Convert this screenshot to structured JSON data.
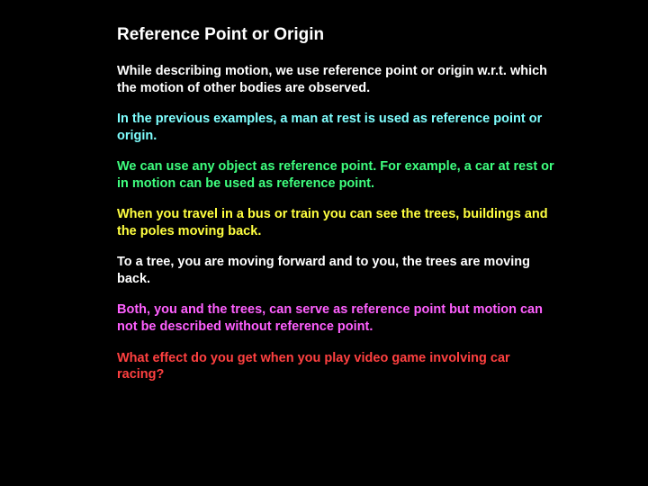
{
  "title": "Reference Point or Origin",
  "paragraphs": [
    {
      "text": "While describing motion, we use reference point or origin w.r.t. which the motion of other bodies are observed.",
      "colorClass": "white"
    },
    {
      "text": "In the previous examples, a man at rest is used as reference point or origin.",
      "colorClass": "cyan"
    },
    {
      "text": "We can use any object as reference point.  For example, a car at rest or in motion can be used as reference point.",
      "colorClass": "green"
    },
    {
      "text": "When you travel in a bus or train you can see the trees, buildings and the poles moving back.",
      "colorClass": "yellow"
    },
    {
      "text": "To a tree, you are moving forward and to you, the trees are moving back.",
      "colorClass": "white"
    },
    {
      "text": "Both, you and the trees, can serve as reference point but motion can not be described without reference point.",
      "colorClass": "magenta"
    },
    {
      "text": "What effect do you get when you play video game involving car racing?",
      "colorClass": "red"
    }
  ],
  "colors": {
    "background": "#000000",
    "white": "#ffffff",
    "cyan": "#7fffff",
    "green": "#3fff7f",
    "yellow": "#ffff40",
    "magenta": "#ff60ff",
    "red": "#ff4040"
  },
  "typography": {
    "title_fontsize": 19,
    "body_fontsize": 14.5,
    "font_weight": "bold",
    "font_family": "Arial"
  }
}
